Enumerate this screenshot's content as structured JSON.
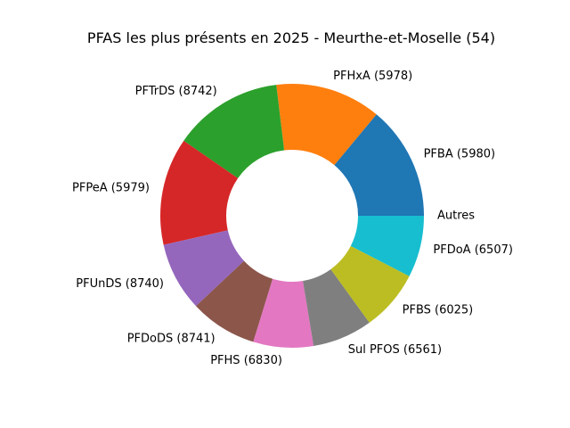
{
  "chart_data": {
    "type": "pie",
    "title": "PFAS les plus présents en 2025 - Meurthe-et-Moselle (54)",
    "donut": true,
    "slices": [
      {
        "label": "PFBA (5980)",
        "value": 14.2,
        "color": "#1f77b4"
      },
      {
        "label": "PFHxA (5978)",
        "value": 13.2,
        "color": "#ff7f0e"
      },
      {
        "label": "PFTrDS (8742)",
        "value": 13.7,
        "color": "#2ca02c"
      },
      {
        "label": "PFPeA (5979)",
        "value": 13.4,
        "color": "#d62728"
      },
      {
        "label": "PFUnDS (8740)",
        "value": 8.6,
        "color": "#9467bd"
      },
      {
        "label": "PFDoDS (8741)",
        "value": 8.4,
        "color": "#8c564b"
      },
      {
        "label": "PFHS (6830)",
        "value": 7.5,
        "color": "#e377c2"
      },
      {
        "label": "Sul PFOS (6561)",
        "value": 7.5,
        "color": "#7f7f7f"
      },
      {
        "label": "PFBS (6025)",
        "value": 7.6,
        "color": "#bcbd22"
      },
      {
        "label": "PFDoA (6507)",
        "value": 7.7,
        "color": "#17becf"
      },
      {
        "label": "Autres",
        "value": 0.0,
        "color": "#1f77b4"
      }
    ]
  }
}
